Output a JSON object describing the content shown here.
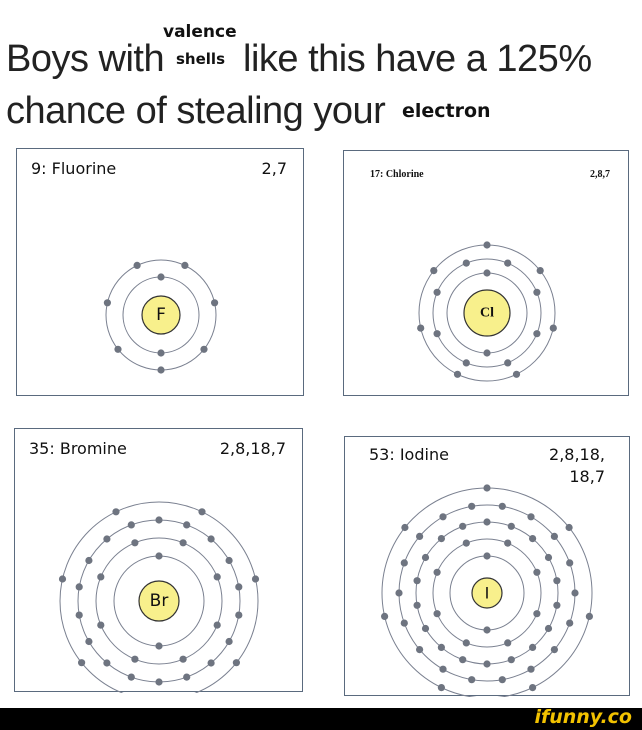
{
  "caption": {
    "line1_part1": "Boys with",
    "superscript": "valence",
    "subscript": "shells",
    "line1_part2": "like this have a 125%",
    "line2": "chance of stealing your",
    "line2_small": "electron"
  },
  "panels": [
    {
      "name": "9: Fluorine",
      "config": "2,7",
      "symbol": "F",
      "shells": [
        2,
        7
      ]
    },
    {
      "name": "17: Chlorine",
      "config": "2,8,7",
      "symbol": "Cl",
      "shells": [
        2,
        8,
        7
      ]
    },
    {
      "name": "35: Bromine",
      "config": "2,8,18,7",
      "symbol": "Br",
      "shells": [
        2,
        8,
        18,
        7
      ]
    },
    {
      "name": "53: Iodine",
      "config_line1": "2,8,18,",
      "config_line2": "18,7",
      "symbol": "I",
      "shells": [
        2,
        8,
        18,
        18,
        7
      ]
    }
  ],
  "footer": {
    "brand": "ifunny.co"
  },
  "colors": {
    "nucleus": "#f8f08c",
    "electron": "#6e7480",
    "orbit": "#7a8090",
    "border": "#5a6a7e",
    "brand": "#f2c200"
  }
}
